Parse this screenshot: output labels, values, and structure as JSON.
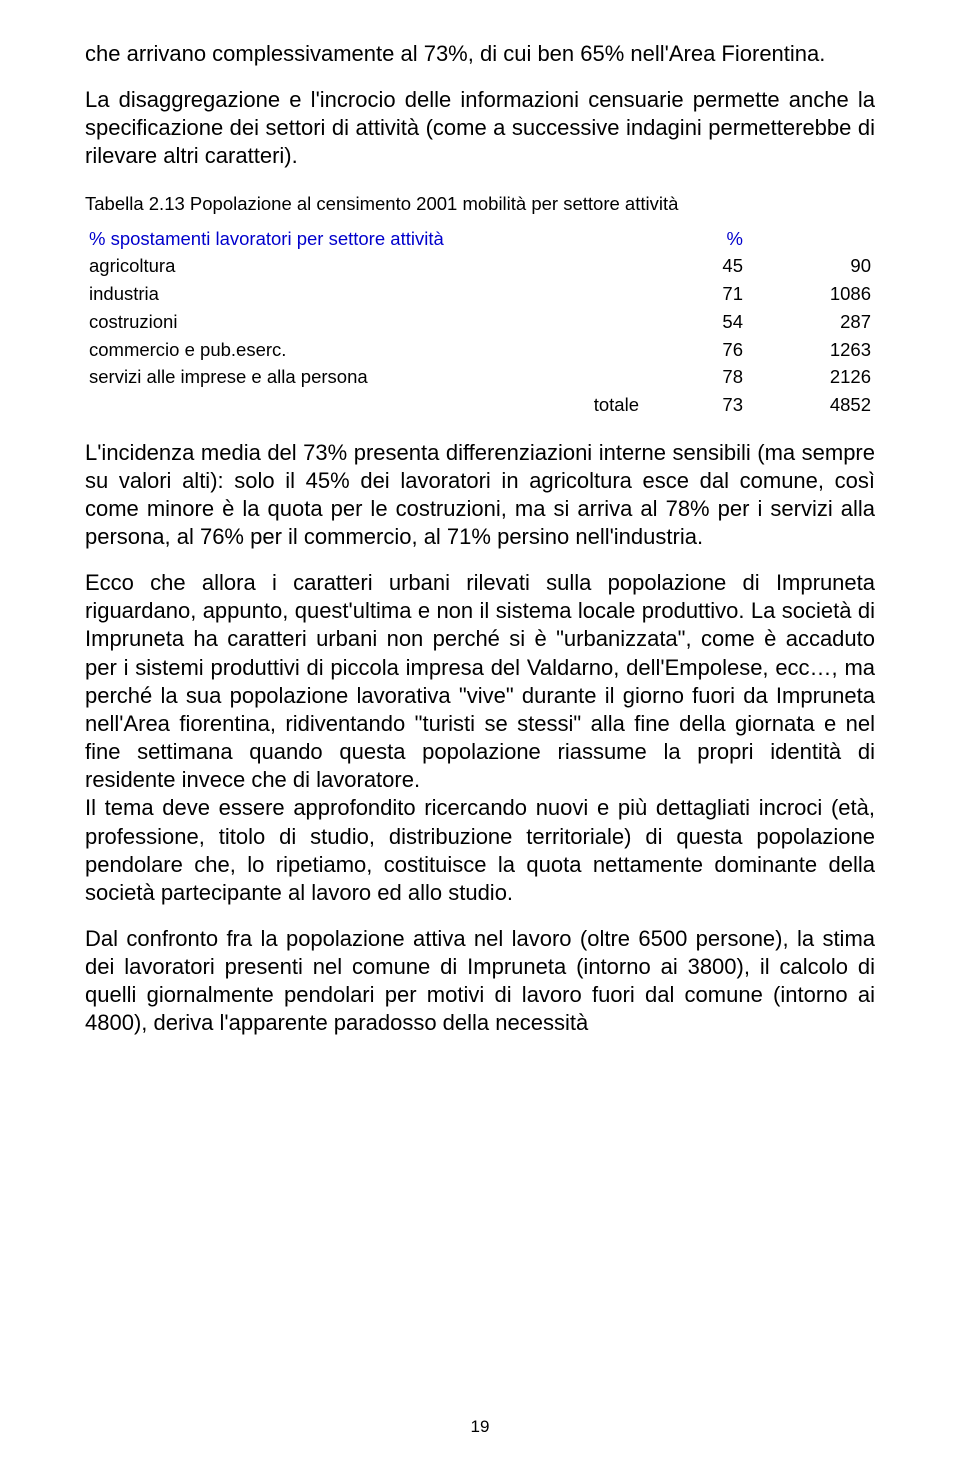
{
  "paragraphs": {
    "p1": "che arrivano complessivamente al 73%, di cui ben 65% nell'Area Fiorentina.",
    "p2": "La disaggregazione e l'incrocio delle informazioni censuarie permette anche la specificazione dei settori di attività (come a successive indagini permetterebbe di rilevare altri caratteri).",
    "p3": "L'incidenza media del 73% presenta differenziazioni interne sensibili (ma sempre su valori alti): solo il 45% dei lavoratori in agricoltura esce dal comune, così come minore è la quota per le costruzioni, ma si arriva al 78% per i servizi alla persona, al 76% per il commercio, al 71% persino nell'industria.",
    "p4a": "Ecco che allora i caratteri urbani rilevati sulla popolazione di Impruneta riguardano, appunto, quest'ultima e non il sistema locale produttivo. La società di Impruneta ha caratteri urbani non perché si è \"urbanizzata\", come è accaduto per i sistemi produttivi di piccola impresa del Valdarno, dell'Empolese, ecc…, ma perché la sua popolazione lavorativa \"vive\" durante il giorno fuori da Impruneta nell'Area fiorentina, ridiventando \"turisti se stessi\" alla fine della giornata e nel fine settimana quando questa popolazione riassume la propri identità di residente invece che di lavoratore.",
    "p4b": "Il tema deve essere approfondito ricercando nuovi e più dettagliati incroci (età, professione, titolo di studio, distribuzione territoriale) di questa popolazione pendolare che, lo ripetiamo, costituisce la quota nettamente dominante della società partecipante al lavoro ed allo studio.",
    "p5": "Dal confronto fra la popolazione attiva nel lavoro (oltre 6500 persone), la stima dei lavoratori presenti nel comune di Impruneta (intorno ai 3800), il calcolo di quelli giornalmente pendolari per motivi di lavoro fuori dal comune (intorno ai 4800), deriva l'apparente paradosso della necessità"
  },
  "table": {
    "caption": "Tabella 2.13 Popolazione al censimento 2001 mobilità per settore attività",
    "header_label": "% spostamenti lavoratori per settore attività",
    "header_pct": "%",
    "header_color": "#0000cc",
    "rows": [
      {
        "label": "agricoltura",
        "pct": "45",
        "val": "90"
      },
      {
        "label": "industria",
        "pct": "71",
        "val": "1086"
      },
      {
        "label": "costruzioni",
        "pct": "54",
        "val": "287"
      },
      {
        "label": "commercio e pub.eserc.",
        "pct": "76",
        "val": "1263"
      },
      {
        "label": "servizi alle imprese e alla persona",
        "pct": "78",
        "val": "2126"
      }
    ],
    "total_label": "totale",
    "total_pct": "73",
    "total_val": "4852"
  },
  "page_number": "19"
}
